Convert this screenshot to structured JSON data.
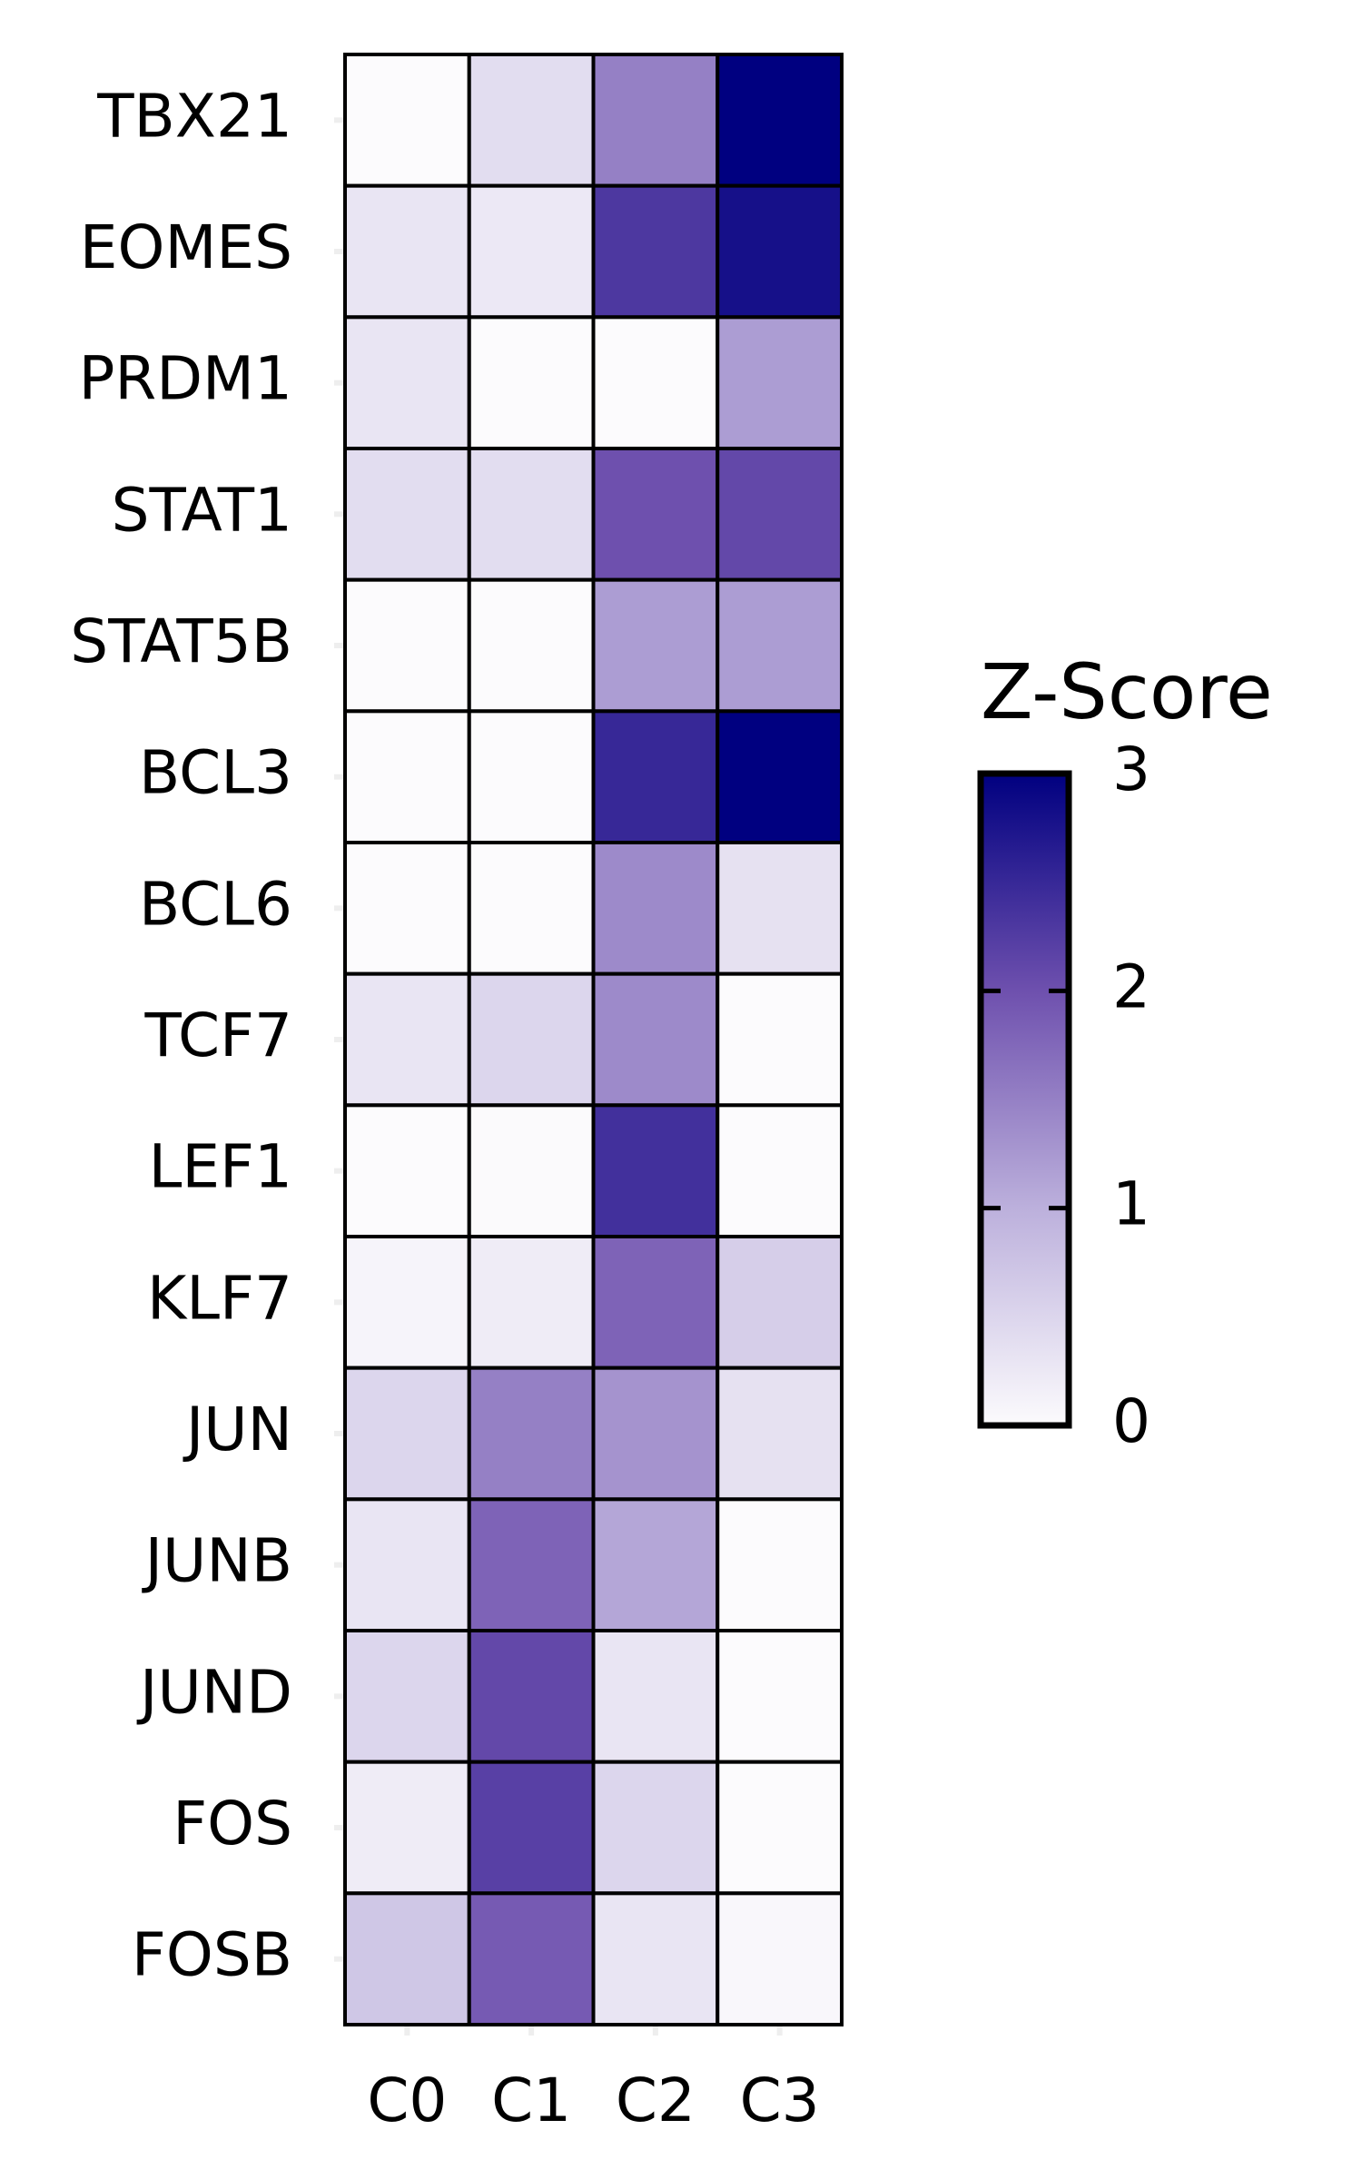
{
  "chart_data": {
    "type": "heatmap",
    "categories": [
      "C0",
      "C1",
      "C2",
      "C3"
    ],
    "rows": [
      "TBX21",
      "EOMES",
      "PRDM1",
      "STAT1",
      "STAT5B",
      "BCL3",
      "BCL6",
      "TCF7",
      "LEF1",
      "KLF7",
      "JUN",
      "JUNB",
      "JUND",
      "FOS",
      "FOSB"
    ],
    "z": [
      [
        0,
        0.4,
        1.5,
        3
      ],
      [
        0.3,
        0.25,
        2.3,
        2.8
      ],
      [
        0.3,
        0,
        0,
        1.2
      ],
      [
        0.4,
        0.4,
        2.0,
        2.1
      ],
      [
        0,
        0,
        1.2,
        1.2
      ],
      [
        0,
        0,
        2.5,
        3
      ],
      [
        0,
        0,
        1.4,
        0.35
      ],
      [
        0.3,
        0.5,
        1.4,
        0
      ],
      [
        0,
        0.02,
        2.4,
        0
      ],
      [
        0.1,
        0.2,
        1.8,
        0.6
      ],
      [
        0.5,
        1.5,
        1.3,
        0.35
      ],
      [
        0.3,
        1.8,
        1.1,
        0
      ],
      [
        0.5,
        2.1,
        0.3,
        0
      ],
      [
        0.2,
        2.2,
        0.5,
        0
      ],
      [
        0.7,
        1.9,
        0.3,
        0.05
      ]
    ],
    "colorbar_title": "Z-Score",
    "clim": [
      0,
      3
    ],
    "cticks": [
      0,
      1,
      2,
      3
    ],
    "colormap": [
      "#fcfbfd",
      "#bcb0dc",
      "#6e50ae",
      "#000080"
    ]
  }
}
